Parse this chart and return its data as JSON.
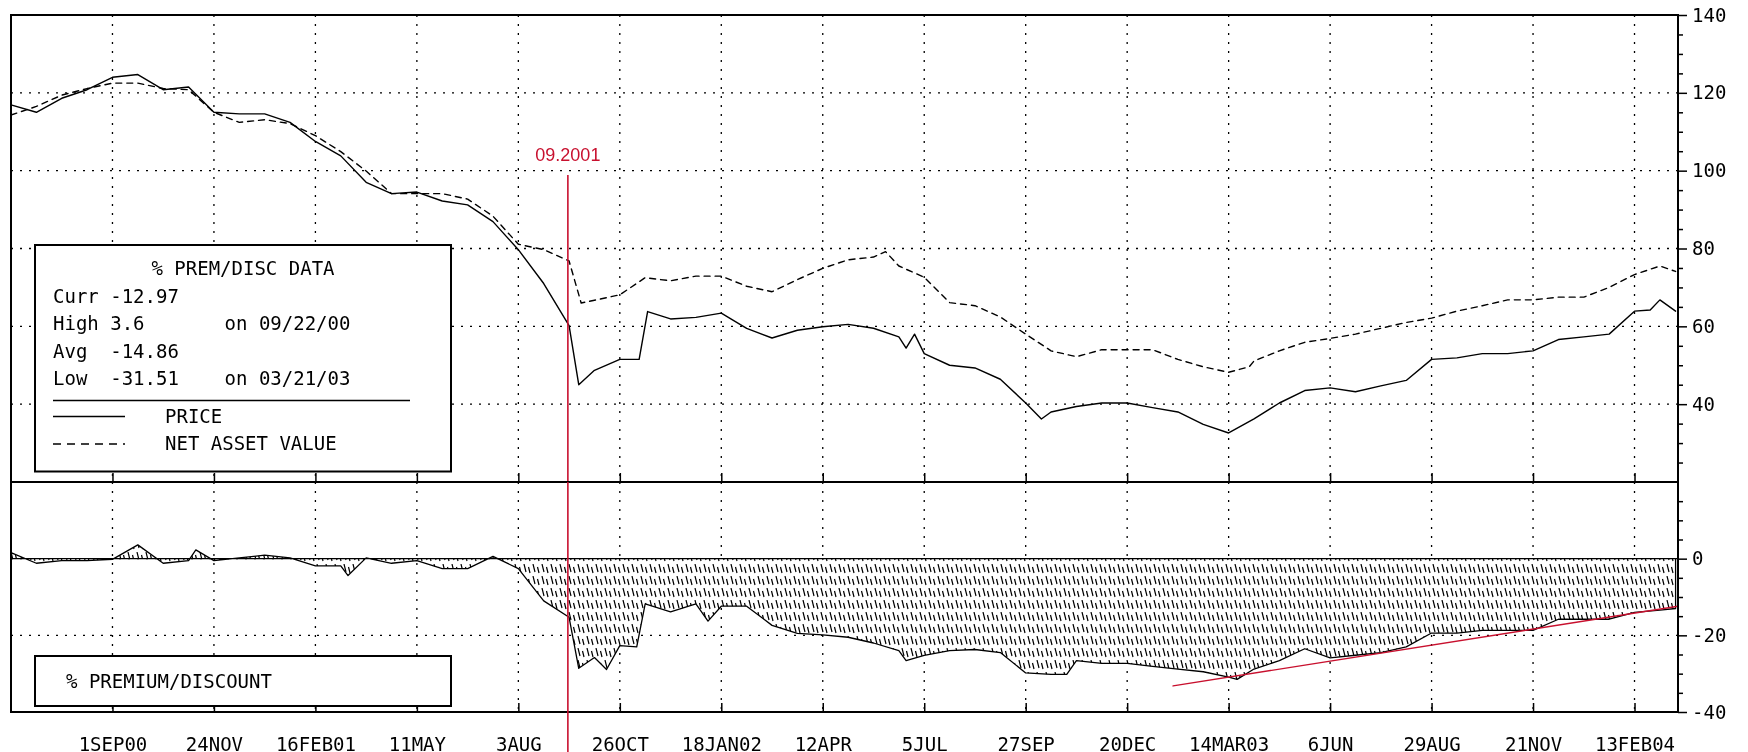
{
  "chart_data": [
    {
      "type": "line",
      "xlim": [
        "2000-06-09",
        "2004-03-20"
      ],
      "xticks": [
        {
          "value": "2000-09-01",
          "label": null
        },
        {
          "value": "2000-11-24",
          "label": null
        },
        {
          "value": "2001-02-16",
          "label": null
        },
        {
          "value": "2001-05-11",
          "label": null
        },
        {
          "value": "2001-08-03",
          "label": null
        },
        {
          "value": "2001-10-26",
          "label": null
        },
        {
          "value": "2002-01-18",
          "label": null
        },
        {
          "value": "2002-04-12",
          "label": null
        },
        {
          "value": "2002-07-05",
          "label": null
        },
        {
          "value": "2002-09-27",
          "label": null
        },
        {
          "value": "2002-12-20",
          "label": null
        },
        {
          "value": "2003-03-14",
          "label": null
        },
        {
          "value": "2003-06-06",
          "label": null
        },
        {
          "value": "2003-08-29",
          "label": null
        },
        {
          "value": "2003-11-21",
          "label": null
        },
        {
          "value": "2004-02-13",
          "label": null
        }
      ],
      "ylim": [
        20,
        140
      ],
      "yticks": [
        {
          "value": 25,
          "label": null
        },
        {
          "value": 30,
          "label": null
        },
        {
          "value": 35,
          "label": null
        },
        40,
        {
          "value": 45,
          "label": null
        },
        {
          "value": 50,
          "label": null
        },
        {
          "value": 55,
          "label": null
        },
        60,
        {
          "value": 65,
          "label": null
        },
        {
          "value": 70,
          "label": null
        },
        {
          "value": 75,
          "label": null
        },
        80,
        {
          "value": 85,
          "label": null
        },
        {
          "value": 90,
          "label": null
        },
        {
          "value": 95,
          "label": null
        },
        100,
        {
          "value": 105,
          "label": null
        },
        {
          "value": 110,
          "label": null
        },
        {
          "value": 115,
          "label": null
        },
        120,
        {
          "value": 125,
          "label": null
        },
        {
          "value": 130,
          "label": null
        },
        {
          "value": 135,
          "label": null
        },
        140
      ],
      "tick_labels": "y",
      "grid": true,
      "legend": "left",
      "annotations": [
        "% PREM/DISC DATA",
        "Curr -12.97",
        "High 3.6       on 09/22/00",
        "Avg  -14.86",
        "Low  -31.51    on 03/21/03"
      ],
      "ref_lines": [
        {
          "axis": "x",
          "value": "2001-09-13",
          "label": "09.2001",
          "color": "#c8102e"
        }
      ],
      "series": [
        {
          "name": "PRICE",
          "color": "#000000",
          "line_style": "solid",
          "x": [
            "2000-06-09",
            "2000-06-30",
            "2000-07-21",
            "2000-08-11",
            "2000-09-01",
            "2000-09-22",
            "2000-10-13",
            "2000-11-03",
            "2000-11-24",
            "2000-12-15",
            "2001-01-05",
            "2001-01-26",
            "2001-02-16",
            "2001-03-09",
            "2001-03-30",
            "2001-04-20",
            "2001-05-11",
            "2001-06-01",
            "2001-06-22",
            "2001-07-13",
            "2001-08-03",
            "2001-08-24",
            "2001-09-14",
            "2001-09-22",
            "2001-10-05",
            "2001-10-26",
            "2001-11-11",
            "2001-11-18",
            "2001-12-07",
            "2001-12-28",
            "2002-01-18",
            "2002-02-08",
            "2002-03-01",
            "2002-03-22",
            "2002-04-12",
            "2002-05-03",
            "2002-05-24",
            "2002-06-14",
            "2002-06-20",
            "2002-06-27",
            "2002-07-05",
            "2002-07-26",
            "2002-08-16",
            "2002-09-06",
            "2002-09-27",
            "2002-10-10",
            "2002-10-18",
            "2002-11-08",
            "2002-11-29",
            "2002-12-20",
            "2003-01-10",
            "2003-01-31",
            "2003-02-21",
            "2003-03-14",
            "2003-04-04",
            "2003-04-25",
            "2003-05-16",
            "2003-06-06",
            "2003-06-27",
            "2003-07-18",
            "2003-08-08",
            "2003-08-29",
            "2003-09-19",
            "2003-10-10",
            "2003-10-31",
            "2003-11-21",
            "2003-12-12",
            "2004-01-02",
            "2004-01-23",
            "2004-02-13",
            "2004-02-26",
            "2004-03-05",
            "2004-03-18"
          ],
          "values": [
            116.9,
            115.0,
            118.6,
            120.8,
            124.0,
            124.7,
            120.8,
            121.5,
            115.0,
            114.6,
            114.6,
            112.4,
            107.5,
            103.8,
            97.0,
            94.1,
            94.5,
            92.2,
            91.2,
            86.9,
            79.7,
            71.0,
            60.2,
            45.0,
            48.7,
            51.5,
            51.5,
            63.8,
            61.9,
            62.3,
            63.4,
            59.5,
            57.0,
            59.0,
            59.9,
            60.5,
            59.5,
            57.3,
            54.4,
            58.0,
            53.0,
            50.0,
            49.3,
            46.4,
            40.3,
            36.2,
            38.0,
            39.4,
            40.3,
            40.3,
            39.1,
            38.0,
            34.8,
            32.6,
            36.2,
            40.3,
            43.5,
            44.2,
            43.2,
            44.7,
            46.1,
            51.5,
            51.9,
            53.0,
            53.0,
            53.7,
            56.6,
            57.3,
            58.0,
            63.9,
            64.2,
            66.8,
            63.9
          ]
        },
        {
          "name": "NET ASSET VALUE",
          "color": "#000000",
          "line_style": "dashed",
          "x": [
            "2000-06-09",
            "2000-06-30",
            "2000-07-21",
            "2000-08-11",
            "2000-09-01",
            "2000-09-22",
            "2000-10-13",
            "2000-11-03",
            "2000-11-24",
            "2000-12-15",
            "2001-01-05",
            "2001-01-26",
            "2001-02-16",
            "2001-03-09",
            "2001-03-30",
            "2001-04-20",
            "2001-05-11",
            "2001-06-01",
            "2001-06-22",
            "2001-07-13",
            "2001-08-03",
            "2001-08-24",
            "2001-09-14",
            "2001-09-24",
            "2001-10-05",
            "2001-10-26",
            "2001-11-16",
            "2001-12-07",
            "2001-12-28",
            "2002-01-18",
            "2002-02-08",
            "2002-03-01",
            "2002-03-22",
            "2002-04-12",
            "2002-05-03",
            "2002-05-24",
            "2002-06-03",
            "2002-06-14",
            "2002-07-05",
            "2002-07-26",
            "2002-08-16",
            "2002-09-06",
            "2002-09-27",
            "2002-10-18",
            "2002-11-08",
            "2002-11-29",
            "2002-12-20",
            "2003-01-10",
            "2003-01-31",
            "2003-02-21",
            "2003-03-14",
            "2003-03-31",
            "2003-04-04",
            "2003-04-25",
            "2003-05-16",
            "2003-06-06",
            "2003-06-27",
            "2003-07-18",
            "2003-08-08",
            "2003-08-29",
            "2003-09-19",
            "2003-10-10",
            "2003-10-31",
            "2003-11-21",
            "2003-12-12",
            "2004-01-02",
            "2004-01-23",
            "2004-02-13",
            "2004-03-05",
            "2004-03-18"
          ],
          "values": [
            114.3,
            116.5,
            119.4,
            121.1,
            122.5,
            122.5,
            121.1,
            120.8,
            115.0,
            112.4,
            113.1,
            112.1,
            109.0,
            104.9,
            99.9,
            94.1,
            94.1,
            94.1,
            92.7,
            88.3,
            81.1,
            79.7,
            76.8,
            66.0,
            66.7,
            68.1,
            72.5,
            71.7,
            72.9,
            72.9,
            70.3,
            68.9,
            72.0,
            74.9,
            77.1,
            77.8,
            79.2,
            75.5,
            72.6,
            66.1,
            65.3,
            62.4,
            58.0,
            53.7,
            52.2,
            54.0,
            54.0,
            54.0,
            51.5,
            49.6,
            48.2,
            49.6,
            51.1,
            53.7,
            55.9,
            56.9,
            58.0,
            59.5,
            61.0,
            62.1,
            63.9,
            65.3,
            66.8,
            66.8,
            67.5,
            67.5,
            70.0,
            73.3,
            75.5,
            74.1
          ]
        }
      ]
    },
    {
      "type": "area",
      "title": "% PREMIUM/DISCOUNT",
      "xlim": [
        "2000-06-09",
        "2004-03-20"
      ],
      "xticks": [
        {
          "value": "2000-09-01",
          "label": "1SEP00"
        },
        {
          "value": "2000-11-24",
          "label": "24NOV"
        },
        {
          "value": "2001-02-16",
          "label": "16FEB01"
        },
        {
          "value": "2001-05-11",
          "label": "11MAY"
        },
        {
          "value": "2001-08-03",
          "label": "3AUG"
        },
        {
          "value": "2001-10-26",
          "label": "26OCT"
        },
        {
          "value": "2002-01-18",
          "label": "18JAN02"
        },
        {
          "value": "2002-04-12",
          "label": "12APR"
        },
        {
          "value": "2002-07-05",
          "label": "5JUL"
        },
        {
          "value": "2002-09-27",
          "label": "27SEP"
        },
        {
          "value": "2002-12-20",
          "label": "20DEC"
        },
        {
          "value": "2003-03-14",
          "label": "14MAR03"
        },
        {
          "value": "2003-06-06",
          "label": "6JUN"
        },
        {
          "value": "2003-08-29",
          "label": "29AUG"
        },
        {
          "value": "2003-11-21",
          "label": "21NOV"
        },
        {
          "value": "2004-02-13",
          "label": "13FEB04"
        }
      ],
      "ylim": [
        -40,
        20
      ],
      "yticks": [
        -40,
        {
          "value": -35,
          "label": null
        },
        {
          "value": -30,
          "label": null
        },
        {
          "value": -25,
          "label": null
        },
        -20,
        {
          "value": -15,
          "label": null
        },
        {
          "value": -10,
          "label": null
        },
        {
          "value": -5,
          "label": null
        },
        0,
        {
          "value": 5,
          "label": null
        },
        {
          "value": 10,
          "label": null
        },
        {
          "value": 15,
          "label": null
        }
      ],
      "grid": true,
      "ref_lines": [
        {
          "axis": "x",
          "value": "2001-09-13",
          "color": "#c8102e"
        }
      ],
      "series": [
        {
          "color": "#000000",
          "x": [
            "2000-06-09",
            "2000-06-30",
            "2000-07-21",
            "2000-08-11",
            "2000-09-01",
            "2000-09-22",
            "2000-10-13",
            "2000-11-03",
            "2000-11-09",
            "2000-11-24",
            "2000-12-15",
            "2001-01-05",
            "2001-01-26",
            "2001-02-16",
            "2001-03-09",
            "2001-03-15",
            "2001-03-30",
            "2001-04-20",
            "2001-05-11",
            "2001-06-01",
            "2001-06-22",
            "2001-07-13",
            "2001-08-03",
            "2001-08-24",
            "2001-09-14",
            "2001-09-22",
            "2001-10-05",
            "2001-10-15",
            "2001-10-26",
            "2001-11-09",
            "2001-11-16",
            "2001-12-07",
            "2001-12-28",
            "2002-01-07",
            "2002-01-18",
            "2002-02-08",
            "2002-03-01",
            "2002-03-22",
            "2002-04-12",
            "2002-05-03",
            "2002-05-24",
            "2002-06-14",
            "2002-06-20",
            "2002-07-05",
            "2002-07-26",
            "2002-08-16",
            "2002-09-06",
            "2002-09-27",
            "2002-10-18",
            "2002-10-31",
            "2002-11-08",
            "2002-11-29",
            "2002-12-20",
            "2003-01-10",
            "2003-01-31",
            "2003-02-21",
            "2003-03-14",
            "2003-03-21",
            "2003-04-04",
            "2003-04-25",
            "2003-05-16",
            "2003-06-06",
            "2003-06-27",
            "2003-07-18",
            "2003-08-08",
            "2003-08-29",
            "2003-09-19",
            "2003-10-10",
            "2003-10-31",
            "2003-11-21",
            "2003-12-12",
            "2004-01-02",
            "2004-01-23",
            "2004-02-13",
            "2004-03-05",
            "2004-03-18"
          ],
          "values": [
            1.6,
            -1.2,
            -0.5,
            -0.5,
            -0.2,
            3.6,
            -1.2,
            -0.5,
            2.3,
            -0.5,
            0.2,
            0.9,
            0.2,
            -1.9,
            -1.9,
            -4.4,
            0.2,
            -1.2,
            -0.5,
            -2.6,
            -2.6,
            0.6,
            -2.6,
            -11.0,
            -15.3,
            -28.6,
            -25.8,
            -28.9,
            -22.7,
            -23.0,
            -11.8,
            -13.9,
            -11.8,
            -16.3,
            -12.4,
            -12.4,
            -17.4,
            -19.5,
            -19.9,
            -20.5,
            -22.0,
            -24.0,
            -26.6,
            -25.2,
            -24.0,
            -23.7,
            -24.5,
            -29.8,
            -30.2,
            -30.2,
            -26.6,
            -27.3,
            -27.3,
            -28.1,
            -28.8,
            -29.5,
            -30.9,
            -31.5,
            -28.8,
            -26.6,
            -23.5,
            -25.9,
            -25.2,
            -24.5,
            -23.0,
            -19.4,
            -19.4,
            -18.7,
            -18.7,
            -18.7,
            -15.8,
            -15.8,
            -15.8,
            -14.0,
            -13.4,
            -13.0
          ]
        },
        {
          "type": "line",
          "color": "#c8102e",
          "x": [
            "2003-01-27",
            "2004-03-20"
          ],
          "values": [
            -33.2,
            -12.4
          ]
        }
      ]
    }
  ]
}
